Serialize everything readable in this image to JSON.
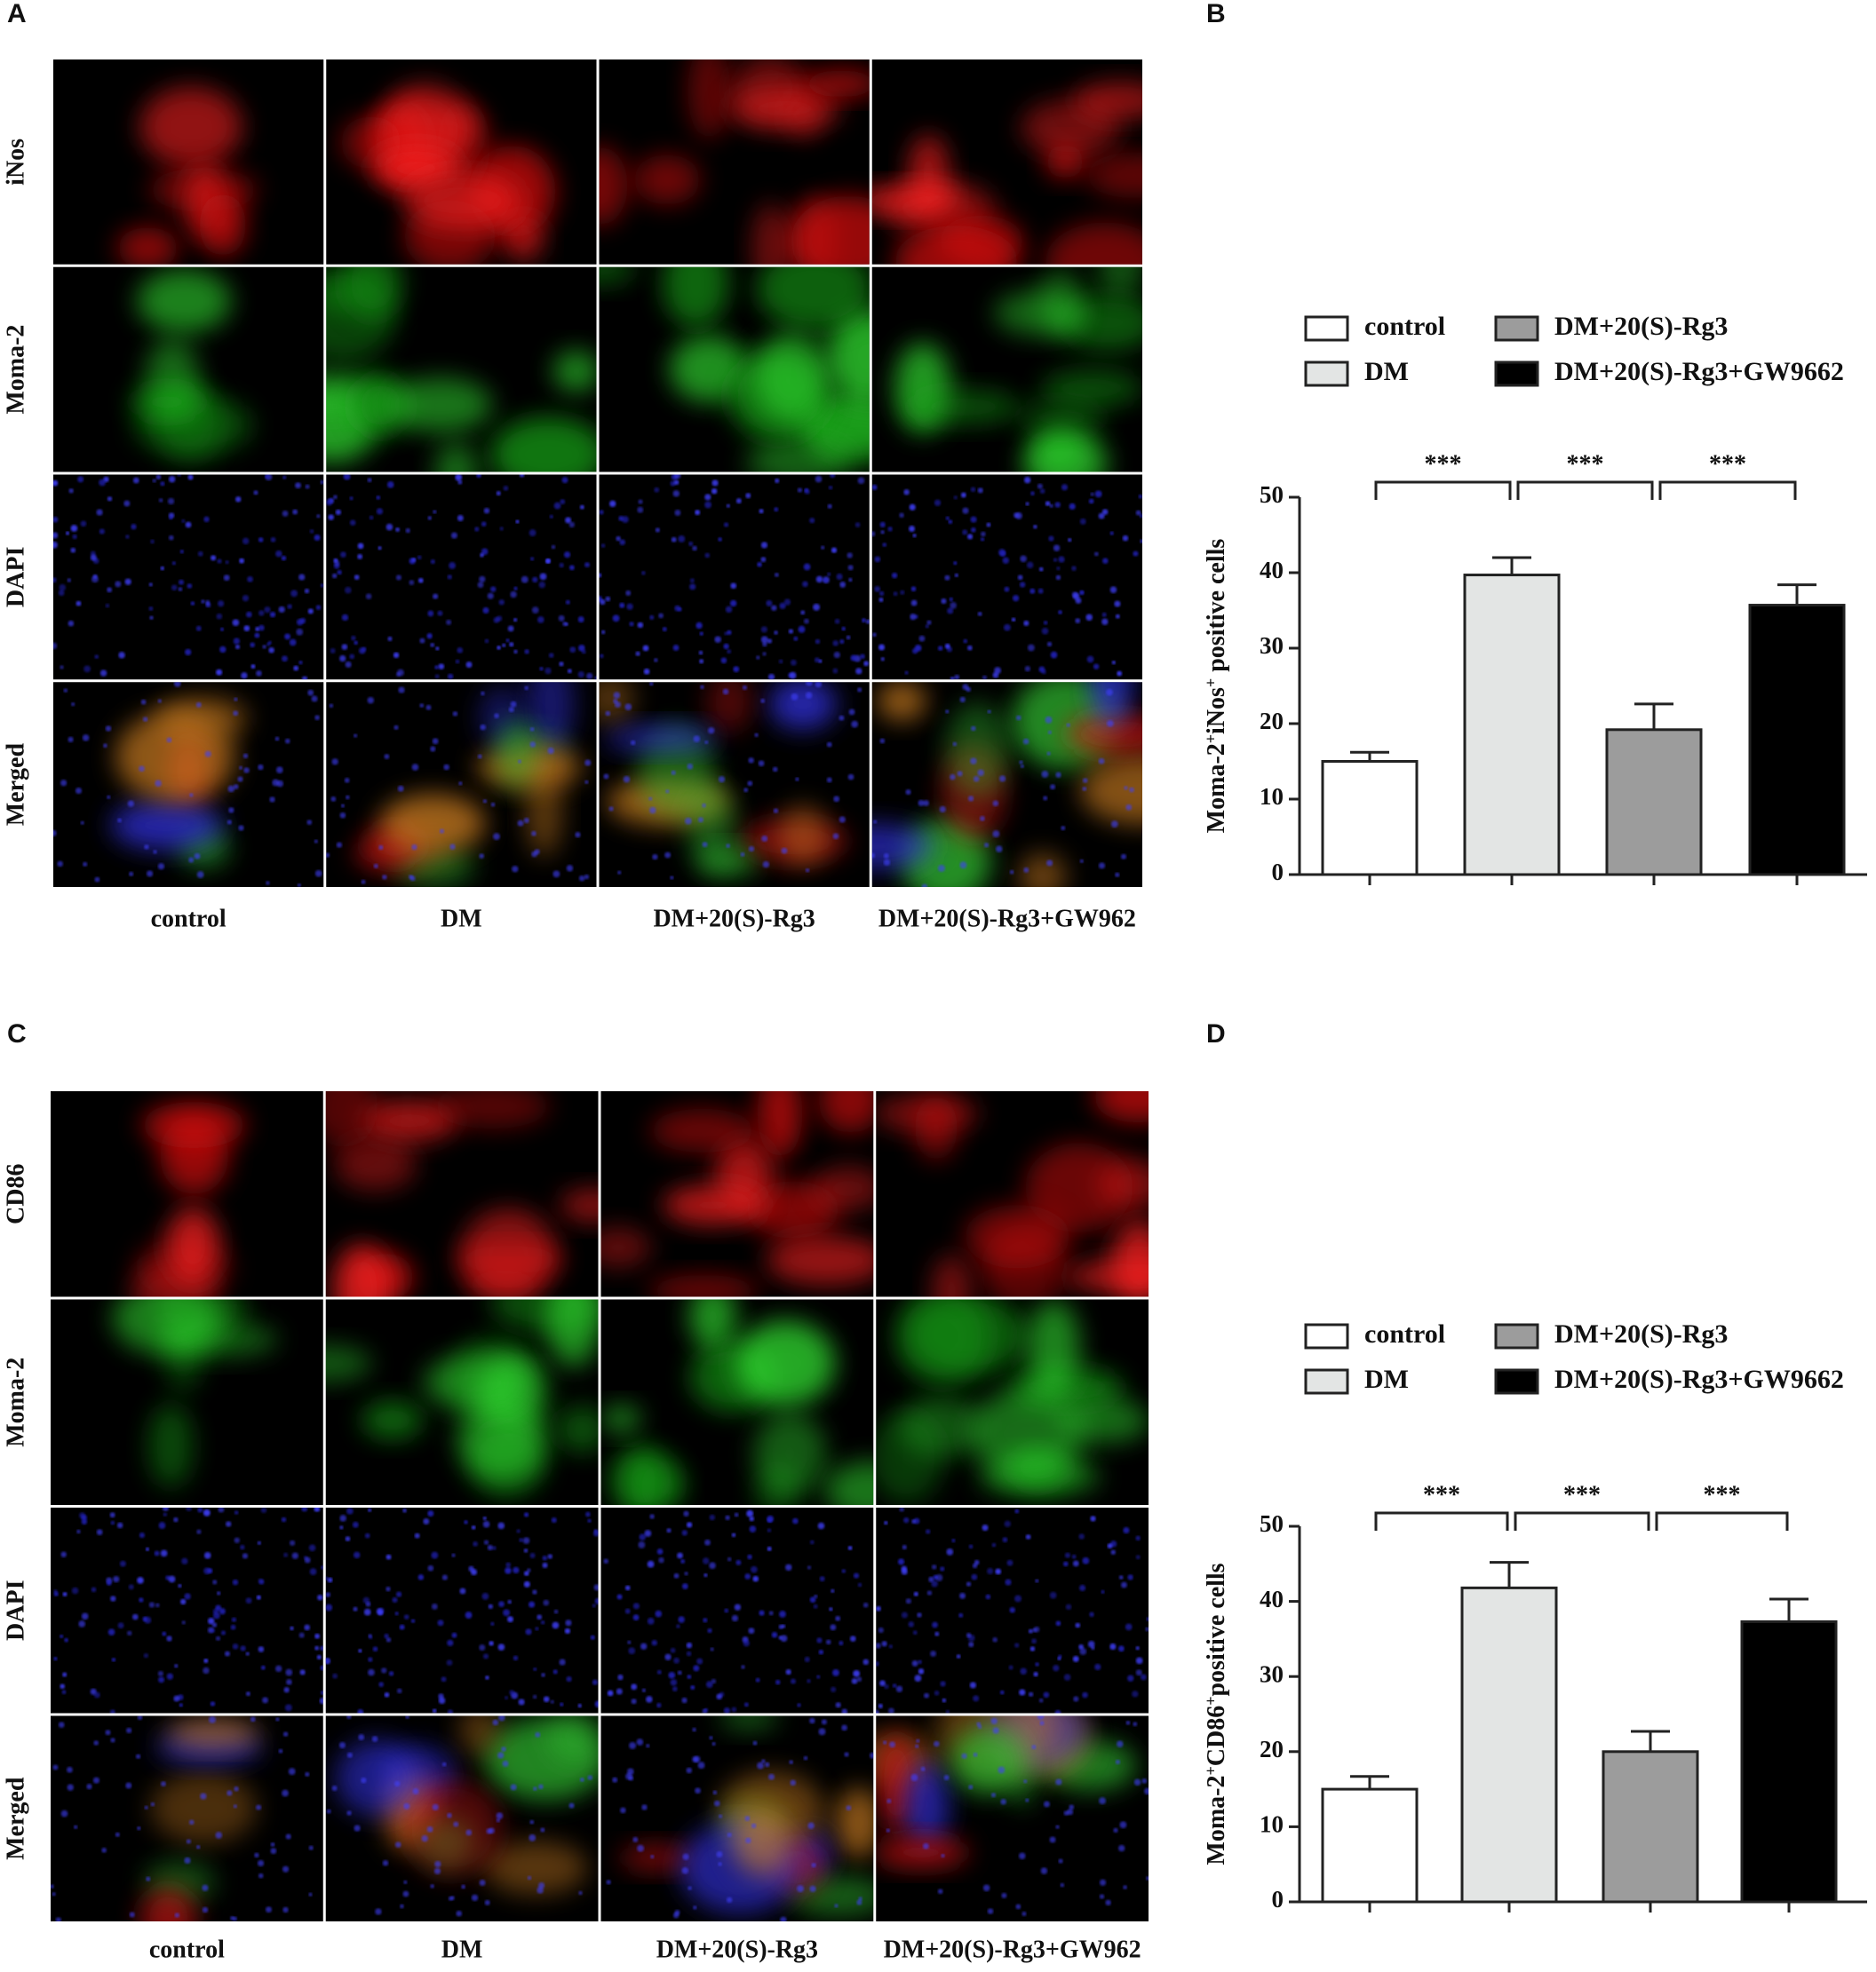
{
  "figure": {
    "panels": [
      {
        "letter": "A",
        "rows": [
          "iNos",
          "Moma-2",
          "DAPI",
          "Merged"
        ],
        "columns": [
          "control",
          "DM",
          "DM+20(S)-Rg3",
          "DM+20(S)-Rg3+GW962"
        ]
      },
      {
        "letter": "C",
        "rows": [
          "CD86",
          "Moma-2",
          "DAPI",
          "Merged"
        ],
        "columns": [
          "control",
          "DM",
          "DM+20(S)-Rg3",
          "DM+20(S)-Rg3+GW962"
        ]
      }
    ]
  },
  "chart_data": [
    {
      "type": "bar",
      "label": "B",
      "y_label": [
        "Moma-2",
        "+",
        "iNos",
        "+",
        " positive cells"
      ],
      "ylim": [
        0,
        50
      ],
      "yticks": [
        0,
        10,
        20,
        30,
        40,
        50
      ],
      "series": [
        {
          "name": "control",
          "color": "#ffffff",
          "values": [
            15
          ],
          "errors": [
            1.2
          ]
        },
        {
          "name": "DM",
          "color": "#e3e5e4",
          "values": [
            39.7
          ],
          "errors": [
            2.3
          ]
        },
        {
          "name": "DM+20(S)-Rg3",
          "color": "#9c9c9c",
          "values": [
            19.2
          ],
          "errors": [
            3.4
          ]
        },
        {
          "name": "DM+20(S)-Rg3+GW9662",
          "color": "#000000",
          "values": [
            35.7
          ],
          "errors": [
            2.7
          ]
        }
      ],
      "annotations": [
        {
          "from": 0,
          "to": 1,
          "text": "***"
        },
        {
          "from": 1,
          "to": 2,
          "text": "***"
        },
        {
          "from": 2,
          "to": 3,
          "text": "***"
        }
      ]
    },
    {
      "type": "bar",
      "label": "D",
      "y_label": [
        "Moma-2",
        "+",
        "CD86",
        "+",
        "positive cells"
      ],
      "ylim": [
        0,
        50
      ],
      "yticks": [
        0,
        10,
        20,
        30,
        40,
        50
      ],
      "series": [
        {
          "name": "control",
          "color": "#ffffff",
          "values": [
            15
          ],
          "errors": [
            1.7
          ]
        },
        {
          "name": "DM",
          "color": "#e3e5e4",
          "values": [
            41.8
          ],
          "errors": [
            3.4
          ]
        },
        {
          "name": "DM+20(S)-Rg3",
          "color": "#9c9c9c",
          "values": [
            20
          ],
          "errors": [
            2.7
          ]
        },
        {
          "name": "DM+20(S)-Rg3+GW9662",
          "color": "#000000",
          "values": [
            37.3
          ],
          "errors": [
            3.0
          ]
        }
      ],
      "annotations": [
        {
          "from": 0,
          "to": 1,
          "text": "***"
        },
        {
          "from": 1,
          "to": 2,
          "text": "***"
        },
        {
          "from": 2,
          "to": 3,
          "text": "***"
        }
      ]
    }
  ]
}
